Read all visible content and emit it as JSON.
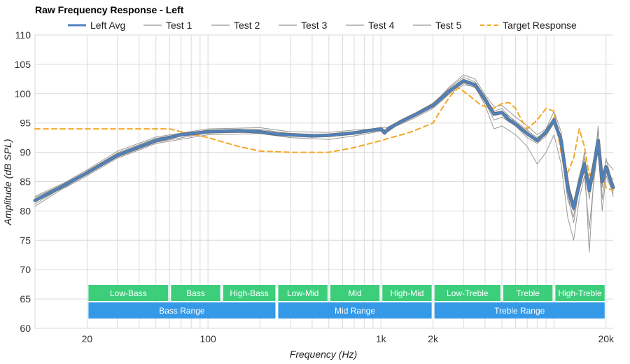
{
  "chart_data": {
    "type": "line",
    "title": "Raw Frequency Response - Left",
    "xlabel": "Frequency (Hz)",
    "ylabel": "Amplitude (dB SPL)",
    "xscale": "log",
    "xlim": [
      10,
      22000
    ],
    "ylim": [
      60,
      110
    ],
    "yticks": [
      60,
      65,
      70,
      75,
      80,
      85,
      90,
      95,
      100,
      105,
      110
    ],
    "xticks": [
      {
        "value": 20,
        "label": "20"
      },
      {
        "value": 100,
        "label": "100"
      },
      {
        "value": 1000,
        "label": "1k"
      },
      {
        "value": 2000,
        "label": "2k"
      },
      {
        "value": 20000,
        "label": "20k"
      }
    ],
    "grid": true,
    "legend": "top",
    "colors": {
      "avg": "#4f81bd",
      "test": "#999999",
      "target": "#f5a623",
      "band_top": "#3dce7c",
      "band_bottom": "#3499e6"
    },
    "series": [
      {
        "name": "Left Avg",
        "style": "avg",
        "x": [
          10,
          12,
          15,
          20,
          30,
          50,
          70,
          100,
          150,
          200,
          250,
          300,
          400,
          500,
          700,
          900,
          1000,
          1050,
          1100,
          1300,
          1600,
          2000,
          2500,
          3000,
          3500,
          4000,
          4500,
          5000,
          5500,
          6000,
          7000,
          8000,
          9000,
          10000,
          11000,
          12000,
          13000,
          14000,
          15000,
          16000,
          17000,
          18000,
          19000,
          20000,
          22000
        ],
        "y": [
          81.8,
          83.0,
          84.5,
          86.5,
          89.5,
          92.0,
          93.0,
          93.5,
          93.7,
          93.5,
          93.1,
          93.0,
          92.8,
          92.9,
          93.3,
          93.8,
          94.0,
          93.3,
          94.0,
          95.2,
          96.5,
          98.0,
          100.5,
          102.2,
          101.5,
          99.0,
          96.5,
          96.8,
          95.5,
          94.8,
          93.2,
          92.0,
          93.5,
          95.5,
          92.0,
          84.0,
          80.5,
          84.5,
          88.0,
          83.5,
          87.5,
          92.0,
          85.0,
          87.5,
          84.0
        ]
      },
      {
        "name": "Test 1",
        "style": "test",
        "x": [
          10,
          15,
          20,
          30,
          50,
          100,
          200,
          300,
          500,
          700,
          1000,
          1100,
          1300,
          1600,
          2000,
          2500,
          3000,
          3500,
          4000,
          4500,
          5000,
          6000,
          7000,
          8000,
          9000,
          10000,
          11000,
          12000,
          13000,
          14000,
          15000,
          16000,
          17000,
          18000,
          19000,
          20000,
          22000
        ],
        "y": [
          81.2,
          84.3,
          86.8,
          89.9,
          92.4,
          93.8,
          93.9,
          93.2,
          93.0,
          93.5,
          94.2,
          94.3,
          95.5,
          96.8,
          98.4,
          101.0,
          102.8,
          102.0,
          99.5,
          97.0,
          97.5,
          95.0,
          93.5,
          92.0,
          93.0,
          96.0,
          91.0,
          82.0,
          79.0,
          85.0,
          90.0,
          82.0,
          88.0,
          94.0,
          84.0,
          89.0,
          84.0
        ]
      },
      {
        "name": "Test 2",
        "style": "test",
        "x": [
          10,
          15,
          20,
          30,
          50,
          100,
          200,
          300,
          500,
          700,
          1000,
          1100,
          1300,
          1600,
          2000,
          2500,
          3000,
          3500,
          4000,
          4500,
          5000,
          6000,
          7000,
          8000,
          9000,
          10000,
          11000,
          12000,
          13000,
          14000,
          15000,
          16000,
          17000,
          18000,
          19000,
          20000,
          22000
        ],
        "y": [
          82.3,
          84.7,
          86.3,
          89.2,
          91.7,
          93.3,
          93.4,
          92.8,
          92.7,
          93.2,
          93.9,
          93.8,
          95.0,
          96.3,
          97.8,
          100.2,
          101.8,
          101.0,
          98.5,
          95.5,
          96.0,
          94.5,
          92.5,
          91.5,
          92.8,
          95.0,
          93.0,
          86.0,
          80.0,
          83.5,
          87.0,
          84.0,
          87.0,
          90.0,
          85.5,
          86.0,
          85.5
        ]
      },
      {
        "name": "Test 3",
        "style": "test",
        "x": [
          10,
          15,
          20,
          30,
          50,
          100,
          200,
          300,
          500,
          700,
          1000,
          1100,
          1300,
          1600,
          2000,
          2500,
          3000,
          3500,
          4000,
          4500,
          5000,
          6000,
          7000,
          8000,
          9000,
          10000,
          11000,
          12000,
          13000,
          14000,
          15000,
          16000,
          17000,
          18000,
          19000,
          20000,
          22000
        ],
        "y": [
          82.0,
          84.0,
          86.0,
          89.0,
          91.5,
          93.0,
          93.2,
          92.5,
          92.2,
          92.8,
          93.6,
          94.0,
          94.8,
          96.0,
          97.5,
          100.0,
          101.5,
          101.2,
          98.0,
          94.0,
          94.5,
          93.0,
          91.0,
          88.0,
          90.0,
          93.0,
          88.0,
          79.0,
          75.0,
          82.0,
          86.0,
          77.0,
          85.0,
          91.0,
          80.0,
          86.0,
          83.0
        ]
      },
      {
        "name": "Test 4",
        "style": "test",
        "x": [
          10,
          15,
          20,
          30,
          50,
          100,
          200,
          300,
          500,
          700,
          1000,
          1100,
          1300,
          1600,
          2000,
          2500,
          3000,
          3500,
          4000,
          4500,
          5000,
          6000,
          7000,
          8000,
          9000,
          10000,
          11000,
          12000,
          13000,
          14000,
          15000,
          16000,
          17000,
          18000,
          19000,
          20000,
          22000
        ],
        "y": [
          82.5,
          84.9,
          87.0,
          90.2,
          92.6,
          94.0,
          94.2,
          93.5,
          93.4,
          93.8,
          94.1,
          93.6,
          95.4,
          96.6,
          98.2,
          101.2,
          103.2,
          102.5,
          99.8,
          97.8,
          98.0,
          96.0,
          94.5,
          93.0,
          94.0,
          97.0,
          93.5,
          85.0,
          81.5,
          86.0,
          89.0,
          85.0,
          89.0,
          93.5,
          86.0,
          88.5,
          87.0
        ]
      },
      {
        "name": "Test 5",
        "style": "test",
        "x": [
          10,
          15,
          20,
          30,
          50,
          100,
          200,
          300,
          500,
          700,
          1000,
          1100,
          1300,
          1600,
          2000,
          2500,
          3000,
          3500,
          4000,
          4500,
          5000,
          6000,
          7000,
          8000,
          9000,
          10000,
          11000,
          12000,
          13000,
          14000,
          15000,
          16000,
          17000,
          18000,
          19000,
          20000,
          22000
        ],
        "y": [
          80.8,
          84.1,
          86.4,
          89.6,
          92.1,
          93.6,
          93.7,
          92.9,
          92.9,
          93.4,
          93.9,
          93.5,
          95.1,
          96.4,
          98.0,
          100.6,
          102.4,
          101.6,
          99.2,
          96.8,
          97.0,
          95.3,
          93.8,
          92.5,
          93.6,
          95.6,
          92.5,
          83.0,
          78.0,
          84.0,
          88.5,
          73.0,
          86.0,
          94.5,
          82.0,
          87.0,
          82.5
        ]
      },
      {
        "name": "Target Response",
        "style": "target",
        "x": [
          10,
          20,
          50,
          60,
          70,
          100,
          150,
          200,
          300,
          500,
          700,
          1000,
          1500,
          2000,
          2200,
          2500,
          2800,
          3200,
          3800,
          4500,
          5000,
          5500,
          6000,
          6500,
          7000,
          8000,
          9000,
          10000,
          11000,
          12000,
          13000,
          14000,
          15000,
          16000,
          17000,
          18000,
          19000,
          20000,
          22000
        ],
        "y": [
          94.0,
          94.0,
          94.0,
          94.0,
          93.5,
          92.5,
          91.0,
          90.2,
          90.0,
          90.0,
          90.8,
          92.0,
          93.5,
          95.0,
          97.0,
          99.5,
          101.0,
          99.8,
          98.0,
          97.5,
          98.3,
          98.5,
          97.5,
          95.5,
          94.0,
          95.5,
          97.5,
          97.0,
          90.0,
          86.5,
          89.0,
          94.0,
          91.0,
          86.0,
          88.0,
          90.0,
          86.0,
          84.0,
          83.5
        ]
      }
    ],
    "bands": [
      {
        "row": "top",
        "label": "Low-Bass",
        "from": 20,
        "to": 60
      },
      {
        "row": "top",
        "label": "Bass",
        "from": 60,
        "to": 120
      },
      {
        "row": "top",
        "label": "High-Bass",
        "from": 120,
        "to": 250
      },
      {
        "row": "top",
        "label": "Low-Mid",
        "from": 250,
        "to": 500
      },
      {
        "row": "top",
        "label": "Mid",
        "from": 500,
        "to": 1000
      },
      {
        "row": "top",
        "label": "High-Mid",
        "from": 1000,
        "to": 2000
      },
      {
        "row": "top",
        "label": "Low-Treble",
        "from": 2000,
        "to": 5000
      },
      {
        "row": "top",
        "label": "Treble",
        "from": 5000,
        "to": 10000
      },
      {
        "row": "top",
        "label": "High-Treble",
        "from": 10000,
        "to": 20000
      },
      {
        "row": "bottom",
        "label": "Bass Range",
        "from": 20,
        "to": 250
      },
      {
        "row": "bottom",
        "label": "Mid Range",
        "from": 250,
        "to": 2000
      },
      {
        "row": "bottom",
        "label": "Treble Range",
        "from": 2000,
        "to": 20000
      }
    ]
  }
}
